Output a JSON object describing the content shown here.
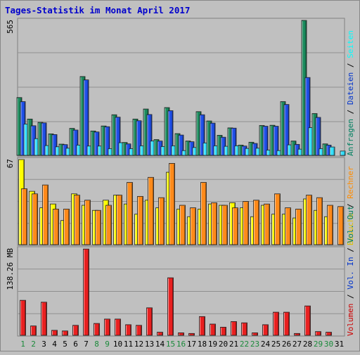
{
  "chart_data": {
    "title": "Tages-Statistik im Monat April 2017",
    "type": "bar",
    "x": [
      "1",
      "2",
      "3",
      "4",
      "5",
      "6",
      "7",
      "8",
      "9",
      "10",
      "11",
      "12",
      "13",
      "14",
      "15",
      "16",
      "17",
      "18",
      "19",
      "20",
      "21",
      "22",
      "23",
      "24",
      "25",
      "26",
      "27",
      "28",
      "29",
      "30",
      "31"
    ],
    "weekend_days": [
      "1",
      "2",
      "8",
      "9",
      "15",
      "16",
      "22",
      "23",
      "29",
      "30"
    ],
    "panels": [
      {
        "id": "p1",
        "max_label": "565",
        "ylim": [
          0,
          565
        ],
        "legend": [
          {
            "text": "Anfragen",
            "color": "#007f5f"
          },
          {
            "text": "Dateien",
            "color": "#0033cc"
          },
          {
            "text": "Seiten",
            "color": "#00ffff"
          }
        ],
        "series": [
          {
            "name": "Anfragen",
            "color": "#1a8a5c",
            "values": [
              242,
              152,
              138,
              90,
              47,
              113,
              330,
              102,
              123,
              170,
              54,
              152,
              194,
              66,
              200,
              91,
              60,
              183,
              144,
              84,
              115,
              43,
              55,
              125,
              126,
              225,
              60,
              565,
              175,
              48,
              0
            ]
          },
          {
            "name": "Dateien",
            "color": "#1f4fe8",
            "values": [
              225,
              124,
              136,
              87,
              45,
              106,
              316,
              98,
              120,
              160,
              48,
              145,
              171,
              60,
              187,
              85,
              57,
              170,
              135,
              76,
              114,
              39,
              50,
              122,
              122,
              213,
              46,
              326,
              159,
              43,
              0
            ]
          },
          {
            "name": "Seiten",
            "color": "#33e0ff",
            "values": [
              131,
              70,
              41,
              36,
              30,
              43,
              39,
              39,
              28,
              53,
              28,
              40,
              60,
              37,
              40,
              20,
              33,
              52,
              40,
              38,
              40,
              29,
              30,
              22,
              20,
              44,
              26,
              116,
              28,
              35,
              18
            ]
          }
        ]
      },
      {
        "id": "p2",
        "max_label": "67",
        "ylim": [
          0,
          67
        ],
        "legend": [
          {
            "text": "Besuche",
            "color": "#e0c000"
          },
          {
            "text": "Rechner",
            "color": "#ff8c00"
          }
        ],
        "series": [
          {
            "name": "Besuche",
            "color": "#ffff00",
            "values": [
              67,
              42,
              29,
              32,
              19,
              40,
              31,
              27,
              35,
              39,
              32,
              24,
              35,
              29,
              57,
              28,
              22,
              28,
              32,
              31,
              33,
              29,
              22,
              31,
              24,
              24,
              21,
              36,
              27,
              22,
              0
            ]
          },
          {
            "name": "Rechner",
            "color": "#ff8a1a",
            "values": [
              44,
              40,
              47,
              28,
              28,
              39,
              35,
              27,
              31,
              39,
              49,
              38,
              53,
              37,
              64,
              31,
              29,
              49,
              33,
              31,
              29,
              34,
              35,
              32,
              40,
              29,
              28,
              39,
              37,
              31,
              30
            ]
          }
        ]
      },
      {
        "id": "p3",
        "max_label": "138.26 MB",
        "ylim": [
          0,
          138.26
        ],
        "legend": [
          {
            "text": "Volumen",
            "color": "#cc0000"
          },
          {
            "text": "Vol. In",
            "color": "#0033cc"
          },
          {
            "text": "Vol. Out",
            "color": "#007f5f"
          }
        ],
        "series": [
          {
            "name": "Volumen",
            "color": "#e82020",
            "values": [
              56,
              15,
              53,
              8,
              7,
              16,
              138,
              19,
              26,
              26,
              17,
              16,
              44,
              5,
              92,
              4,
              3,
              30,
              18,
              13,
              22,
              20,
              4,
              17,
              37,
              37,
              3,
              47,
              6,
              5,
              0
            ]
          }
        ]
      }
    ]
  }
}
